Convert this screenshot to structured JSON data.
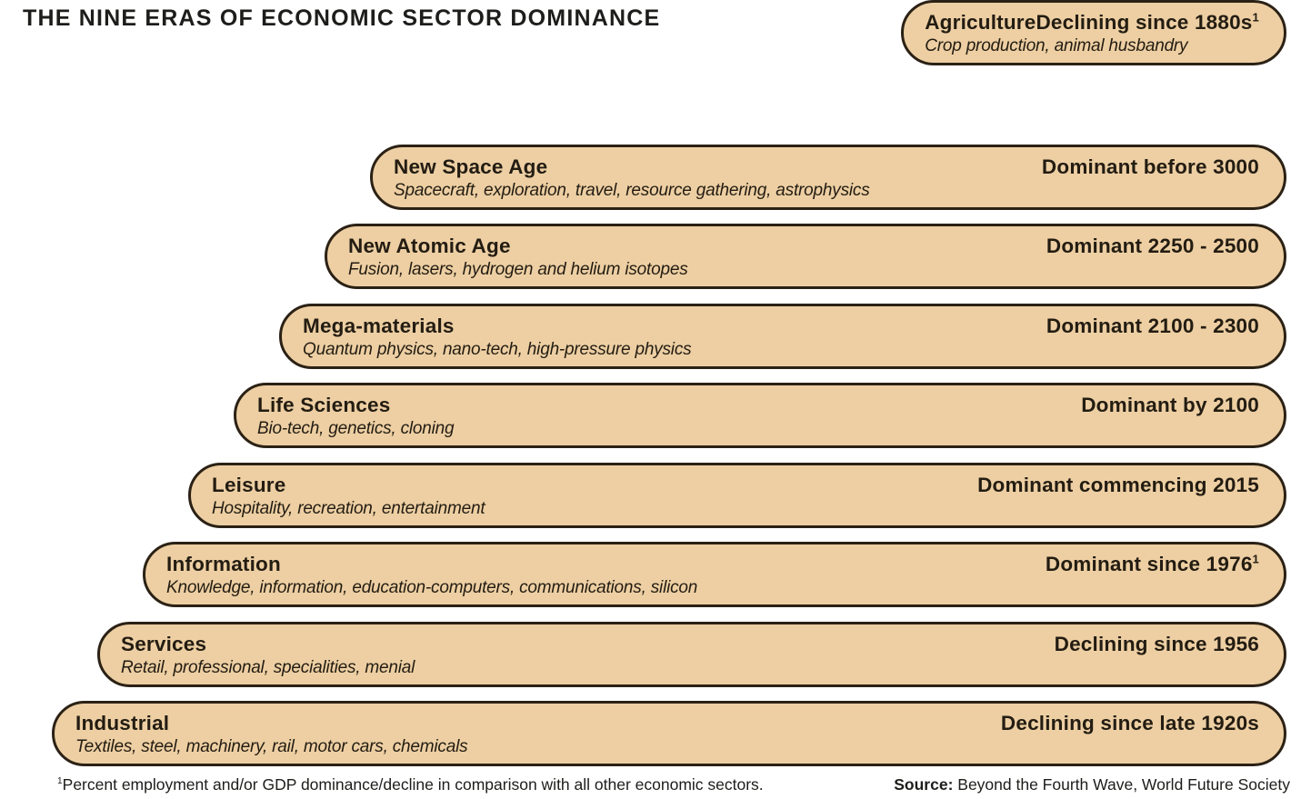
{
  "title": "THE NINE ERAS OF ECONOMIC SECTOR DOMINANCE",
  "chart_data": {
    "type": "table",
    "title": "THE NINE ERAS OF ECONOMIC SECTOR DOMINANCE",
    "layout": "staircase of nine stadium-shaped bars, each lower era offset further left, shared right edge",
    "eras": [
      {
        "name": "New Space Age",
        "description": "Spacecraft, exploration, travel, resource gathering, astrophysics",
        "status": "Dominant before 3000",
        "status_sup": ""
      },
      {
        "name": "New Atomic Age",
        "description": "Fusion, lasers, hydrogen and helium isotopes",
        "status": "Dominant 2250 - 2500",
        "status_sup": ""
      },
      {
        "name": "Mega-materials",
        "description": "Quantum physics, nano-tech, high-pressure physics",
        "status": "Dominant 2100 - 2300",
        "status_sup": ""
      },
      {
        "name": "Life Sciences",
        "description": "Bio-tech, genetics, cloning",
        "status": "Dominant by 2100",
        "status_sup": ""
      },
      {
        "name": "Leisure",
        "description": "Hospitality, recreation, entertainment",
        "status": "Dominant commencing 2015",
        "status_sup": ""
      },
      {
        "name": "Information",
        "description": "Knowledge, information, education-computers, communications, silicon",
        "status": "Dominant since 1976",
        "status_sup": "1"
      },
      {
        "name": "Services",
        "description": "Retail, professional, specialities, menial",
        "status": "Declining since 1956",
        "status_sup": ""
      },
      {
        "name": "Industrial",
        "description": "Textiles, steel, machinery, rail, motor cars, chemicals",
        "status": "Declining since late 1920s",
        "status_sup": ""
      },
      {
        "name": "Agriculture",
        "description": "Crop production, animal husbandry",
        "status": "Declining since 1880s",
        "status_sup": "1"
      }
    ]
  },
  "footer": {
    "footnote_sup": "1",
    "footnote_text": "Percent employment and/or GDP dominance/decline in comparison with all other economic sectors.",
    "source_label": "Source:",
    "source_text": " Beyond the Fourth Wave, World Future Society"
  },
  "colors": {
    "bar_fill": "#EDCFA3",
    "bar_border": "#2B2115",
    "bar_text": "#231C12",
    "title_text": "#1D1D1B",
    "background": "#FFFFFF"
  }
}
